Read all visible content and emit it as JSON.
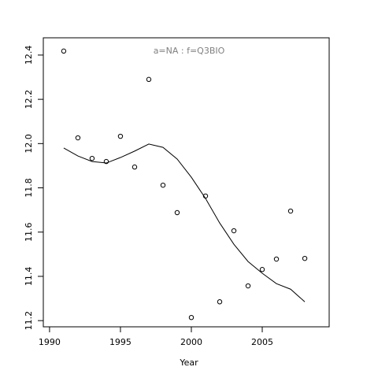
{
  "chart_data": {
    "type": "scatter",
    "title": "a=NA  :  f=Q3BIO",
    "x_label": "Year",
    "x": [
      1991,
      1992,
      1993,
      1994,
      1995,
      1996,
      1997,
      1998,
      1999,
      2000,
      2001,
      2002,
      2003,
      2004,
      2005,
      2006,
      2007,
      2008
    ],
    "series": [
      {
        "style": "points",
        "color": "#000000",
        "values": [
          12.418,
          12.026,
          11.933,
          11.919,
          12.033,
          11.894,
          12.29,
          11.812,
          11.688,
          11.214,
          11.763,
          11.285,
          11.606,
          11.357,
          11.431,
          11.478,
          11.695,
          11.481
        ]
      },
      {
        "style": "line",
        "color": "#000000",
        "values": [
          11.98,
          11.944,
          11.919,
          11.912,
          11.937,
          11.966,
          11.998,
          11.983,
          11.93,
          11.848,
          11.752,
          11.641,
          11.545,
          11.467,
          11.414,
          11.367,
          11.342,
          11.285
        ]
      }
    ],
    "xlim": [
      1989.56,
      2009.72
    ],
    "ylim": [
      11.172,
      12.478
    ],
    "xticks": [
      1990,
      1995,
      2000,
      2005
    ],
    "yticks": [
      11.2,
      11.4,
      11.6,
      11.8,
      {
        "value": 12,
        "label": "12.0"
      },
      12.2,
      12.4
    ],
    "title_color": "#808080"
  }
}
